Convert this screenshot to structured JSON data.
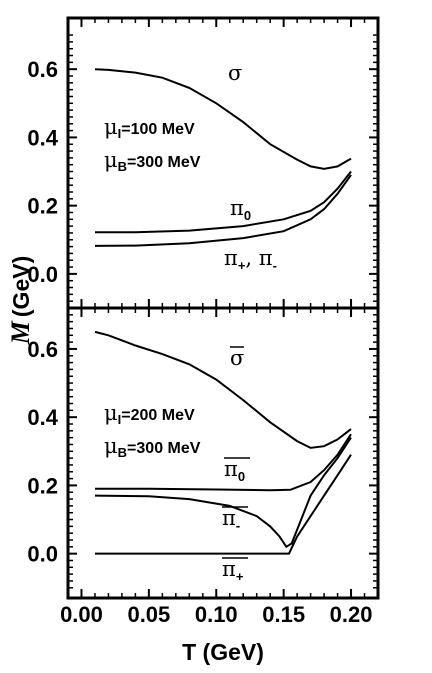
{
  "chart_data": [
    {
      "type": "line",
      "panel": "top",
      "ylim": [
        -0.1,
        0.75
      ],
      "xlim": [
        -0.01,
        0.22
      ],
      "y_ticks": [
        "0.0",
        "0.2",
        "0.4",
        "0.6"
      ],
      "annotations": {
        "mu_i": "=100 MeV",
        "mu_b": "=300 MeV"
      },
      "series": [
        {
          "name": "σ",
          "sub": "",
          "bar": false,
          "x": [
            0.01,
            0.02,
            0.04,
            0.06,
            0.08,
            0.1,
            0.12,
            0.14,
            0.16,
            0.17,
            0.18,
            0.19,
            0.2
          ],
          "y": [
            0.6,
            0.598,
            0.59,
            0.575,
            0.545,
            0.5,
            0.445,
            0.38,
            0.335,
            0.315,
            0.308,
            0.315,
            0.338
          ]
        },
        {
          "name": "π",
          "sub": "0",
          "bar": false,
          "x": [
            0.01,
            0.04,
            0.08,
            0.12,
            0.15,
            0.17,
            0.18,
            0.19,
            0.2
          ],
          "y": [
            0.122,
            0.122,
            0.127,
            0.14,
            0.16,
            0.185,
            0.21,
            0.25,
            0.3
          ]
        },
        {
          "name": "π",
          "sub": "+",
          "bar": false,
          "extra": ", π",
          "extra_sub": "-",
          "x": [
            0.01,
            0.04,
            0.08,
            0.12,
            0.15,
            0.17,
            0.18,
            0.19,
            0.2
          ],
          "y": [
            0.082,
            0.083,
            0.09,
            0.105,
            0.125,
            0.16,
            0.19,
            0.235,
            0.29
          ]
        }
      ]
    },
    {
      "type": "line",
      "panel": "bottom",
      "ylim": [
        -0.13,
        0.72
      ],
      "xlim": [
        -0.01,
        0.22
      ],
      "y_ticks": [
        "0.0",
        "0.2",
        "0.4",
        "0.6"
      ],
      "x_ticks": [
        "0.00",
        "0.05",
        "0.10",
        "0.15",
        "0.20"
      ],
      "xlabel": "T (GeV)",
      "annotations": {
        "mu_i": "=200 MeV",
        "mu_b": "=300 MeV"
      },
      "series": [
        {
          "name": "σ",
          "sub": "",
          "bar": true,
          "x": [
            0.01,
            0.02,
            0.04,
            0.06,
            0.08,
            0.1,
            0.12,
            0.14,
            0.16,
            0.17,
            0.18,
            0.19,
            0.2
          ],
          "y": [
            0.65,
            0.64,
            0.61,
            0.585,
            0.555,
            0.51,
            0.45,
            0.385,
            0.33,
            0.31,
            0.315,
            0.335,
            0.365
          ]
        },
        {
          "name": "π",
          "sub": "0",
          "bar": true,
          "x": [
            0.01,
            0.05,
            0.1,
            0.14,
            0.155,
            0.17,
            0.18,
            0.19,
            0.2
          ],
          "y": [
            0.19,
            0.19,
            0.188,
            0.186,
            0.187,
            0.21,
            0.245,
            0.29,
            0.35
          ]
        },
        {
          "name": "π",
          "sub": "-",
          "bar": true,
          "x": [
            0.01,
            0.05,
            0.08,
            0.11,
            0.13,
            0.14,
            0.147,
            0.152,
            0.156,
            0.17,
            0.18,
            0.19,
            0.2
          ],
          "y": [
            0.17,
            0.168,
            0.16,
            0.14,
            0.11,
            0.08,
            0.05,
            0.02,
            0.03,
            0.17,
            0.23,
            0.28,
            0.34
          ]
        },
        {
          "name": "π",
          "sub": "+",
          "bar": true,
          "x": [
            0.01,
            0.1,
            0.154,
            0.16,
            0.17,
            0.18,
            0.19,
            0.2
          ],
          "y": [
            0.0,
            0.0,
            0.0,
            0.05,
            0.11,
            0.17,
            0.23,
            0.29
          ]
        }
      ]
    }
  ],
  "ylabel": "M (GeV)"
}
